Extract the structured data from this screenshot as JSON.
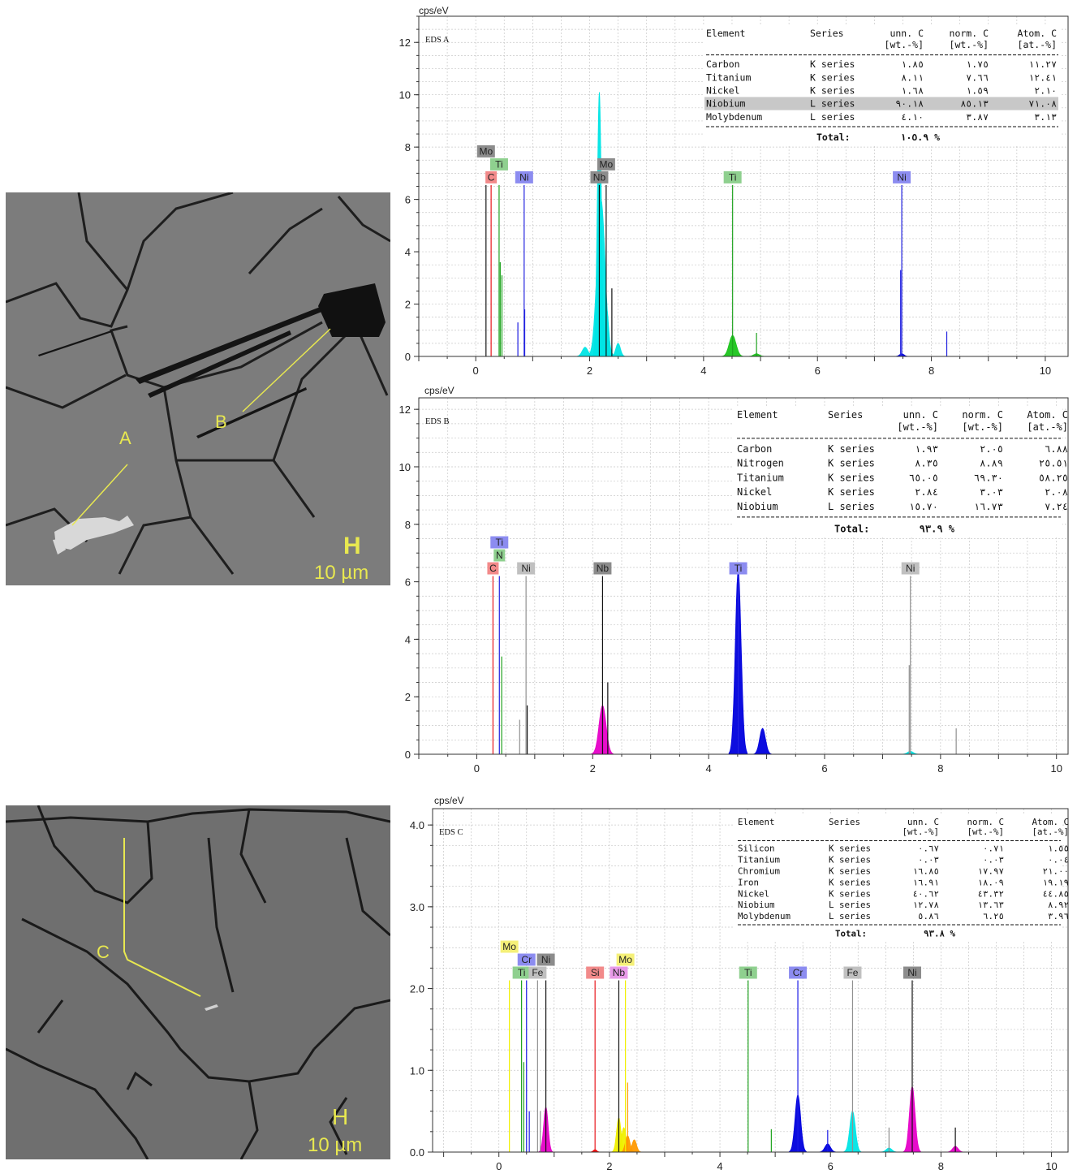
{
  "micrographs": [
    {
      "name": "micrograph-top",
      "labels": [
        "A",
        "B"
      ],
      "scale_text": "10 µm",
      "scale_symbol": "H"
    },
    {
      "name": "micrograph-bottom",
      "labels": [
        "C"
      ],
      "scale_text": "10 µm",
      "scale_symbol": "H"
    }
  ],
  "colors": {
    "C": "#e8191e",
    "N": "#2fa82f",
    "Ti": "#1fa31f",
    "Ni": "#2222e0",
    "Nb": "#111111",
    "Mo": "#111111",
    "Si": "#e8191e",
    "Cr": "#1a1ae6",
    "Fe": "#909090",
    "cyan": "#00e5e5",
    "blue": "#0000dd",
    "magenta": "#e600c8",
    "yellow": "#f0f000",
    "green": "#1cc41c",
    "orange": "#ff9900",
    "grid": "#c8c8c8"
  },
  "chart_data": [
    {
      "type": "area",
      "name": "eds-a",
      "title": "EDS A",
      "ylabel": "cps/eV",
      "xlim": [
        -1,
        10.4
      ],
      "ylim": [
        0,
        13
      ],
      "xticks": [
        0,
        2,
        4,
        6,
        8,
        10
      ],
      "yticks": [
        0,
        2,
        4,
        6,
        8,
        10,
        12
      ],
      "ytick_labels": [
        "0",
        "2",
        "4",
        "6",
        "8",
        "10",
        "12"
      ],
      "series": [
        {
          "color": "cyan",
          "peaks": [
            [
              2.17,
              10.1,
              0.035
            ],
            [
              2.2,
              6.0,
              0.07
            ],
            [
              2.3,
              1.8,
              0.035
            ],
            [
              1.92,
              0.35,
              0.05
            ],
            [
              2.5,
              0.5,
              0.04
            ]
          ]
        },
        {
          "color": "green",
          "peaks": [
            [
              4.51,
              0.8,
              0.06
            ],
            [
              4.93,
              0.1,
              0.05
            ]
          ]
        },
        {
          "color": "blue",
          "peaks": [
            [
              7.48,
              0.1,
              0.04
            ]
          ]
        }
      ],
      "markers": [
        {
          "x": 0.18,
          "h": 6.55,
          "color": "Nb"
        },
        {
          "x": 0.27,
          "h": 6.55,
          "color": "C"
        },
        {
          "x": 0.41,
          "h": 6.55,
          "color": "Ti"
        },
        {
          "x": 0.43,
          "h": 3.6,
          "color": "Ti"
        },
        {
          "x": 0.46,
          "h": 3.1,
          "color": "Ti"
        },
        {
          "x": 0.85,
          "h": 6.55,
          "color": "Ni"
        },
        {
          "x": 0.74,
          "h": 1.3,
          "color": "Ni"
        },
        {
          "x": 0.86,
          "h": 1.8,
          "color": "Ni"
        },
        {
          "x": 2.17,
          "h": 6.55,
          "color": "Nb"
        },
        {
          "x": 2.29,
          "h": 6.55,
          "color": "Mo"
        },
        {
          "x": 2.39,
          "h": 2.6,
          "color": "Mo"
        },
        {
          "x": 4.51,
          "h": 6.55,
          "color": "Ti"
        },
        {
          "x": 4.93,
          "h": 0.9,
          "color": "Ti"
        },
        {
          "x": 7.48,
          "h": 6.55,
          "color": "Ni"
        },
        {
          "x": 7.46,
          "h": 3.3,
          "color": "Ni"
        },
        {
          "x": 8.27,
          "h": 0.95,
          "color": "Ni"
        }
      ],
      "labels": [
        {
          "text": "Mo",
          "x": 0.18,
          "row": 2,
          "bg": "#8c8c8c"
        },
        {
          "text": "Ti",
          "x": 0.41,
          "row": 1,
          "bg": "#8fd08f"
        },
        {
          "text": "C",
          "x": 0.27,
          "row": 0,
          "bg": "#f28a8a"
        },
        {
          "text": "Ni",
          "x": 0.85,
          "row": 0,
          "bg": "#8c8cf0"
        },
        {
          "text": "Mo",
          "x": 2.29,
          "row": 1,
          "bg": "#8c8c8c"
        },
        {
          "text": "Nb",
          "x": 2.17,
          "row": 0,
          "bg": "#8c8c8c"
        },
        {
          "text": "Ti",
          "x": 4.51,
          "row": 0,
          "bg": "#8fd08f"
        },
        {
          "text": "Ni",
          "x": 7.48,
          "row": 0,
          "bg": "#8c8cf0"
        }
      ],
      "table": {
        "headers1": [
          "Element",
          "Series",
          "unn. C",
          "norm. C",
          "Atom. C"
        ],
        "headers2": [
          "",
          "",
          "[wt.-%]",
          "[wt.-%]",
          "[at.-%]"
        ],
        "rows": [
          [
            "Carbon",
            "K series",
            "١.٨٥",
            "١.٧٥",
            "١١.٢٧"
          ],
          [
            "Titanium",
            "K series",
            "٨.١١",
            "٧.٦٦",
            "١٢.٤١"
          ],
          [
            "Nickel",
            "K series",
            "١.٦٨",
            "١.٥٩",
            "٢.١٠"
          ],
          [
            "Niobium",
            "L series",
            "٩٠.١٨",
            "٨٥.١٣",
            "٧١.٠٨"
          ],
          [
            "Molybdenum",
            "L series",
            "٤.١٠",
            "٣.٨٧",
            "٣.١٣"
          ]
        ],
        "highlight": 3,
        "total_label": "Total:",
        "total_value": "١٠٥.٩ %"
      }
    },
    {
      "type": "area",
      "name": "eds-b",
      "title": "EDS B",
      "ylabel": "cps/eV",
      "xlim": [
        -1,
        10.2
      ],
      "ylim": [
        0,
        12.4
      ],
      "xticks": [
        0,
        2,
        4,
        6,
        8,
        10
      ],
      "yticks": [
        0,
        2,
        4,
        6,
        8,
        10,
        12
      ],
      "ytick_labels": [
        "0",
        "2",
        "4",
        "6",
        "8",
        "10",
        "12"
      ],
      "series": [
        {
          "color": "magenta",
          "peaks": [
            [
              2.17,
              1.7,
              0.06
            ]
          ]
        },
        {
          "color": "blue",
          "peaks": [
            [
              4.51,
              6.4,
              0.05
            ],
            [
              4.93,
              0.9,
              0.05
            ]
          ]
        },
        {
          "color": "cyan",
          "peaks": [
            [
              7.48,
              0.1,
              0.05
            ]
          ]
        }
      ],
      "markers": [
        {
          "x": 0.28,
          "h": 6.2,
          "color": "C"
        },
        {
          "x": 0.39,
          "h": 6.2,
          "color": "Ni"
        },
        {
          "x": 0.43,
          "h": 3.4,
          "color": "Ti"
        },
        {
          "x": 0.85,
          "h": 6.2,
          "color": "Fe"
        },
        {
          "x": 0.74,
          "h": 1.2,
          "color": "Fe"
        },
        {
          "x": 0.87,
          "h": 1.7,
          "color": "Nb"
        },
        {
          "x": 2.17,
          "h": 6.2,
          "color": "Nb"
        },
        {
          "x": 2.26,
          "h": 2.5,
          "color": "Nb"
        },
        {
          "x": 4.51,
          "h": 6.2,
          "color": "Ni"
        },
        {
          "x": 7.48,
          "h": 6.2,
          "color": "Fe"
        },
        {
          "x": 7.46,
          "h": 3.1,
          "color": "Fe"
        },
        {
          "x": 8.27,
          "h": 0.9,
          "color": "Fe"
        }
      ],
      "labels": [
        {
          "text": "Ti",
          "x": 0.39,
          "row": 2,
          "bg": "#8c8cf0"
        },
        {
          "text": "N",
          "x": 0.39,
          "row": 1,
          "bg": "#8fd08f"
        },
        {
          "text": "C",
          "x": 0.28,
          "row": 0,
          "bg": "#f28a8a"
        },
        {
          "text": "Ni",
          "x": 0.85,
          "row": 0,
          "bg": "#c0c0c0"
        },
        {
          "text": "Nb",
          "x": 2.17,
          "row": 0,
          "bg": "#8c8c8c"
        },
        {
          "text": "Ti",
          "x": 4.51,
          "row": 0,
          "bg": "#8c8cf0"
        },
        {
          "text": "Ni",
          "x": 7.48,
          "row": 0,
          "bg": "#c0c0c0"
        }
      ],
      "table": {
        "headers1": [
          "Element",
          "Series",
          "unn. C",
          "norm. C",
          "Atom. C"
        ],
        "headers2": [
          "",
          "",
          "[wt.-%]",
          "[wt.-%]",
          "[at.-%]"
        ],
        "rows": [
          [
            "Carbon",
            "K series",
            "١.٩٣",
            "٢.٠٥",
            "٦.٨٨"
          ],
          [
            "Nitrogen",
            "K series",
            "٨.٣٥",
            "٨.٨٩",
            "٢٥.٥١"
          ],
          [
            "Titanium",
            "K series",
            "٦٥.٠٥",
            "٦٩.٣٠",
            "٥٨.٢٥"
          ],
          [
            "Nickel",
            "K series",
            "٢.٨٤",
            "٣.٠٣",
            "٢.٠٨"
          ],
          [
            "Niobium",
            "L series",
            "١٥.٧٠",
            "١٦.٧٣",
            "٧.٢٤"
          ]
        ],
        "highlight": -1,
        "total_label": "Total:",
        "total_value": "٩٣.٩ %"
      }
    },
    {
      "type": "area",
      "name": "eds-c",
      "title": "EDS C",
      "ylabel": "cps/eV",
      "xlim": [
        -1.2,
        10.3
      ],
      "ylim": [
        0,
        4.2
      ],
      "xticks": [
        0,
        2,
        4,
        6,
        8,
        10
      ],
      "yticks": [
        0,
        1,
        2,
        3,
        4
      ],
      "ytick_labels": [
        "0.0",
        "1.0",
        "2.0",
        "3.0",
        "4.0"
      ],
      "series": [
        {
          "color": "yellow",
          "peaks": [
            [
              2.17,
              0.42,
              0.04
            ],
            [
              2.26,
              0.3,
              0.04
            ]
          ]
        },
        {
          "color": "orange",
          "peaks": [
            [
              2.33,
              0.2,
              0.04
            ],
            [
              2.45,
              0.15,
              0.04
            ]
          ]
        },
        {
          "color": "magenta",
          "peaks": [
            [
              0.85,
              0.55,
              0.04
            ],
            [
              7.48,
              0.8,
              0.05
            ],
            [
              8.26,
              0.07,
              0.05
            ]
          ]
        },
        {
          "color": "blue",
          "peaks": [
            [
              5.41,
              0.7,
              0.05
            ],
            [
              5.95,
              0.1,
              0.05
            ]
          ]
        },
        {
          "color": "cyan",
          "peaks": [
            [
              6.4,
              0.5,
              0.05
            ],
            [
              7.06,
              0.05,
              0.05
            ]
          ]
        },
        {
          "color": "red",
          "peaks": [
            [
              1.74,
              0.03,
              0.03
            ]
          ]
        }
      ],
      "markers": [
        {
          "x": 0.19,
          "h": 2.1,
          "color": "yellow"
        },
        {
          "x": 0.41,
          "h": 2.1,
          "color": "Ti"
        },
        {
          "x": 0.45,
          "h": 1.1,
          "color": "Ti"
        },
        {
          "x": 0.5,
          "h": 2.1,
          "color": "Cr"
        },
        {
          "x": 0.55,
          "h": 0.5,
          "color": "Cr"
        },
        {
          "x": 0.7,
          "h": 2.1,
          "color": "Fe"
        },
        {
          "x": 0.75,
          "h": 0.5,
          "color": "Fe"
        },
        {
          "x": 0.85,
          "h": 2.1,
          "color": "Nb"
        },
        {
          "x": 1.74,
          "h": 2.1,
          "color": "Si"
        },
        {
          "x": 2.17,
          "h": 2.1,
          "color": "Nb"
        },
        {
          "x": 2.29,
          "h": 2.1,
          "color": "yellow"
        },
        {
          "x": 2.33,
          "h": 0.85,
          "color": "orange"
        },
        {
          "x": 4.51,
          "h": 2.1,
          "color": "Ti"
        },
        {
          "x": 4.93,
          "h": 0.28,
          "color": "Ti"
        },
        {
          "x": 5.41,
          "h": 2.1,
          "color": "Cr"
        },
        {
          "x": 5.95,
          "h": 0.27,
          "color": "Cr"
        },
        {
          "x": 6.4,
          "h": 2.1,
          "color": "Fe"
        },
        {
          "x": 7.06,
          "h": 0.3,
          "color": "Fe"
        },
        {
          "x": 7.48,
          "h": 2.1,
          "color": "Nb"
        },
        {
          "x": 8.26,
          "h": 0.3,
          "color": "Nb"
        }
      ],
      "labels": [
        {
          "text": "Mo",
          "x": 0.19,
          "row": 2,
          "bg": "#f5f078"
        },
        {
          "text": "Cr",
          "x": 0.5,
          "row": 1,
          "bg": "#8c8cf0"
        },
        {
          "text": "Ni",
          "x": 0.85,
          "row": 1,
          "bg": "#8c8c8c"
        },
        {
          "text": "Ti",
          "x": 0.41,
          "row": 0,
          "bg": "#8fd08f"
        },
        {
          "text": "Fe",
          "x": 0.7,
          "row": 0,
          "bg": "#c0c0c0"
        },
        {
          "text": "Si",
          "x": 1.74,
          "row": 0,
          "bg": "#f28a8a"
        },
        {
          "text": "Mo",
          "x": 2.29,
          "row": 1,
          "bg": "#f5f078"
        },
        {
          "text": "Nb",
          "x": 2.17,
          "row": 0,
          "bg": "#e89ae8"
        },
        {
          "text": "Ti",
          "x": 4.51,
          "row": 0,
          "bg": "#8fd08f"
        },
        {
          "text": "Cr",
          "x": 5.41,
          "row": 0,
          "bg": "#8c8cf0"
        },
        {
          "text": "Fe",
          "x": 6.4,
          "row": 0,
          "bg": "#c0c0c0"
        },
        {
          "text": "Ni",
          "x": 7.48,
          "row": 0,
          "bg": "#8c8c8c"
        }
      ],
      "table": {
        "headers1": [
          "Element",
          "Series",
          "unn. C",
          "norm. C",
          "Atom. C"
        ],
        "headers2": [
          "",
          "",
          "[wt.-%]",
          "[wt.-%]",
          "[at.-%]"
        ],
        "rows": [
          [
            "Silicon",
            "K series",
            "٠.٦٧",
            "٠.٧١",
            "١.٥٥"
          ],
          [
            "Titanium",
            "K series",
            "٠.٠٣",
            "٠.٠٣",
            "٠.٠٤"
          ],
          [
            "Chromium",
            "K series",
            "١٦.٨٥",
            "١٧.٩٧",
            "٢١.٠٠"
          ],
          [
            "Iron",
            "K series",
            "١٦.٩١",
            "١٨.٠٩",
            "١٩.١٩"
          ],
          [
            "Nickel",
            "K series",
            "٤٠.٦٢",
            "٤٣.٣٢",
            "٤٤.٨٥"
          ],
          [
            "Niobium",
            "L series",
            "١٢.٧٨",
            "١٣.٦٣",
            "٨.٩٢"
          ],
          [
            "Molybdenum",
            "L series",
            "٥.٨٦",
            "٦.٢٥",
            "٣.٩٦"
          ]
        ],
        "highlight": -1,
        "total_label": "Total:",
        "total_value": "٩٣.٨ %"
      }
    }
  ]
}
